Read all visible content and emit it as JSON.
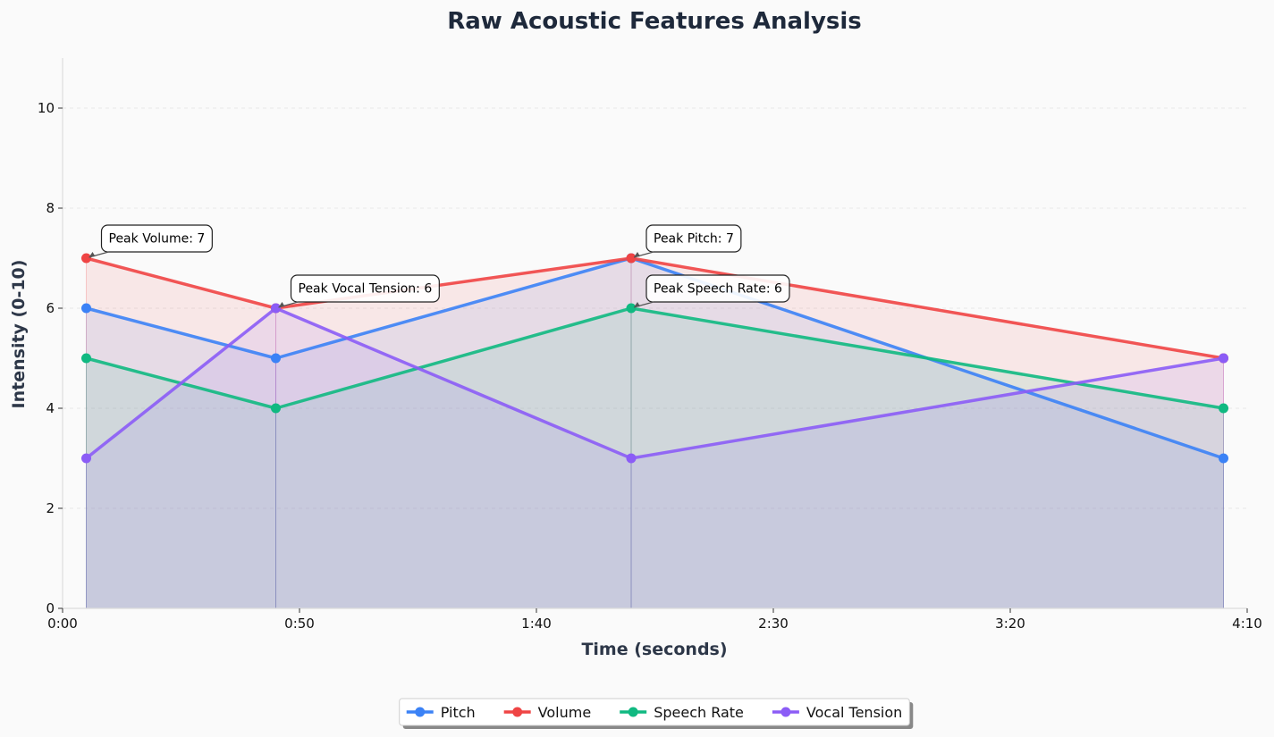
{
  "chart_data": {
    "type": "line",
    "title": "Raw Acoustic Features Analysis",
    "xlabel": "Time (seconds)",
    "ylabel": "Intensity (0-10)",
    "xlim": [
      0,
      250
    ],
    "ylim": [
      0,
      11
    ],
    "x_ticks": [
      0,
      50,
      100,
      150,
      200,
      250
    ],
    "x_tick_labels": [
      "0:00",
      "0:50",
      "1:40",
      "2:30",
      "3:20",
      "4:10"
    ],
    "y_ticks": [
      0,
      2,
      4,
      6,
      8,
      10
    ],
    "y_tick_labels": [
      "0",
      "2",
      "4",
      "6",
      "8",
      "10"
    ],
    "grid": true,
    "legend_position": "bottom-center",
    "x": [
      5,
      45,
      120,
      245
    ],
    "series": [
      {
        "name": "Pitch",
        "color": "#3b82f6",
        "values": [
          6,
          5,
          7,
          3
        ]
      },
      {
        "name": "Volume",
        "color": "#ef4444",
        "values": [
          7,
          6,
          7,
          5
        ]
      },
      {
        "name": "Speech Rate",
        "color": "#10b981",
        "values": [
          5,
          4,
          6,
          4
        ]
      },
      {
        "name": "Vocal Tension",
        "color": "#8b5cf6",
        "values": [
          3,
          6,
          3,
          5
        ]
      }
    ],
    "annotations": [
      {
        "text": "Peak Volume: 7",
        "x": 5,
        "y": 7,
        "dx": 17,
        "dy": -22
      },
      {
        "text": "Peak Vocal Tension: 6",
        "x": 45,
        "y": 6,
        "dx": 17,
        "dy": -22
      },
      {
        "text": "Peak Pitch: 7",
        "x": 120,
        "y": 7,
        "dx": 17,
        "dy": -22
      },
      {
        "text": "Peak Speech Rate: 6",
        "x": 120,
        "y": 6,
        "dx": 17,
        "dy": -22
      }
    ]
  }
}
